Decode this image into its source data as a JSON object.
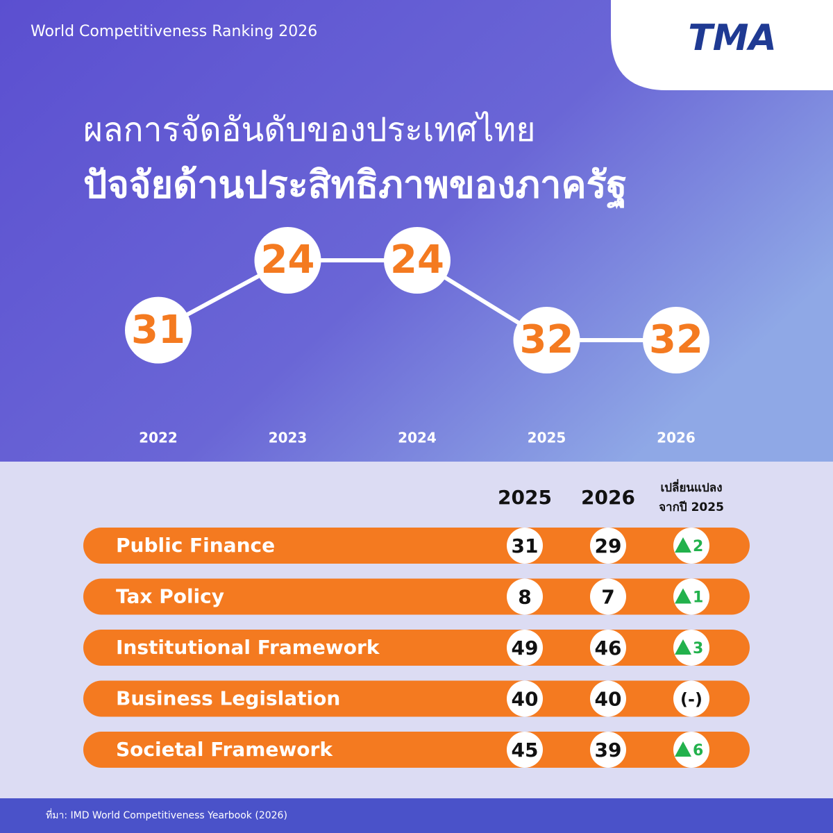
{
  "header": {
    "caption": "World Competitiveness Ranking 2026",
    "logo": "TMA",
    "title_line1": "ผลการจัดอันดับของประเทศไทย",
    "title_line2": "ปัจจัยด้านประสิทธิภาพของภาครัฐ"
  },
  "chart_data": {
    "type": "line",
    "categories": [
      "2022",
      "2023",
      "2024",
      "2025",
      "2026"
    ],
    "values": [
      31,
      24,
      24,
      32,
      32
    ],
    "reverse_y": true,
    "color": "#ffffff",
    "label_color": "#f47a20"
  },
  "table": {
    "columns": [
      "2025",
      "2026"
    ],
    "change_header": [
      "เปลี่ยนแปลง",
      "จากปี 2025"
    ],
    "rows": [
      [
        "Public Finance",
        31,
        29,
        2
      ],
      [
        "Tax Policy",
        8,
        7,
        1
      ],
      [
        "Institutional Framework",
        49,
        46,
        3
      ],
      [
        "Business Legislation",
        40,
        40,
        "(-)"
      ],
      [
        "Societal Framework",
        45,
        39,
        6
      ]
    ]
  },
  "footer": {
    "source": "ที่มา: IMD World Competitiveness Yearbook (2026)"
  }
}
